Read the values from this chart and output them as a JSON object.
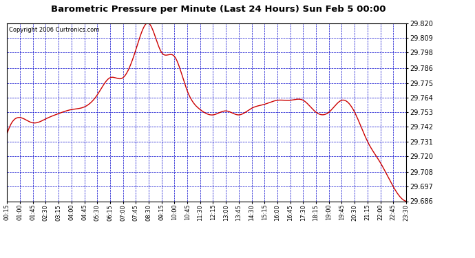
{
  "title": "Barometric Pressure per Minute (Last 24 Hours) Sun Feb 5 00:00",
  "copyright": "Copyright 2006 Curtronics.com",
  "y_ticks": [
    29.686,
    29.697,
    29.708,
    29.72,
    29.731,
    29.742,
    29.753,
    29.764,
    29.775,
    29.786,
    29.798,
    29.809,
    29.82
  ],
  "y_min": 29.686,
  "y_max": 29.82,
  "line_color": "#cc0000",
  "grid_color": "#0000cc",
  "background_color": "#ffffff",
  "x_labels": [
    "00:15",
    "01:00",
    "01:45",
    "02:30",
    "03:15",
    "04:00",
    "04:45",
    "05:30",
    "06:15",
    "07:00",
    "07:45",
    "08:30",
    "09:15",
    "10:00",
    "10:45",
    "11:30",
    "12:15",
    "13:00",
    "13:45",
    "14:30",
    "15:15",
    "16:00",
    "16:45",
    "17:30",
    "18:15",
    "19:00",
    "19:45",
    "20:30",
    "21:15",
    "22:00",
    "22:45",
    "23:30"
  ],
  "key_points": {
    "00:15": 29.737,
    "01:00": 29.749,
    "01:45": 29.745,
    "02:30": 29.748,
    "03:15": 29.752,
    "04:00": 29.755,
    "04:45": 29.757,
    "05:30": 29.766,
    "06:15": 29.779,
    "07:00": 29.779,
    "07:45": 29.8,
    "08:30": 29.82,
    "09:15": 29.798,
    "10:00": 29.795,
    "10:45": 29.769,
    "11:30": 29.755,
    "12:15": 29.751,
    "13:00": 29.754,
    "13:45": 29.751,
    "14:30": 29.756,
    "15:15": 29.759,
    "16:00": 29.762,
    "16:45": 29.762,
    "17:30": 29.762,
    "18:15": 29.753,
    "19:00": 29.753,
    "19:45": 29.762,
    "20:30": 29.753,
    "21:15": 29.731,
    "22:00": 29.715,
    "22:45": 29.697,
    "23:30": 29.686
  }
}
